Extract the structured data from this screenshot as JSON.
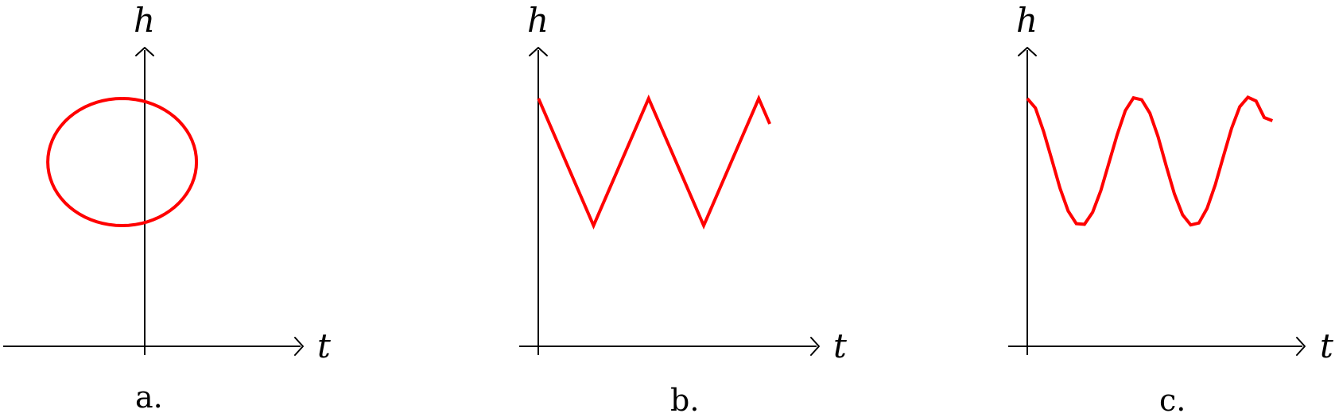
{
  "colors": {
    "curve": "#ff0000",
    "axis": "#000000"
  },
  "chart_data": [
    {
      "type": "line",
      "panel_label": "a.",
      "xlabel": "t",
      "ylabel": "h",
      "shape": "circle",
      "xlim": [
        -1.6,
        2.4
      ],
      "ylim": [
        0,
        4.7
      ],
      "points": {
        "x": [
          0,
          0.707,
          1,
          0.707,
          0,
          -0.707,
          -1,
          -0.707,
          0
        ],
        "y": [
          3.9,
          3.607,
          2.9,
          2.193,
          1.9,
          2.193,
          2.9,
          3.607,
          3.9
        ]
      }
    },
    {
      "type": "line",
      "panel_label": "b.",
      "xlabel": "t",
      "ylabel": "h",
      "shape": "triangle-wave",
      "xlim": [
        -0.35,
        5.05
      ],
      "ylim": [
        0,
        4.7
      ],
      "points": {
        "x": [
          0,
          1,
          2,
          3,
          4,
          4.2
        ],
        "y": [
          3.9,
          1.9,
          3.9,
          1.9,
          3.9,
          3.5
        ]
      }
    },
    {
      "type": "line",
      "panel_label": "c.",
      "xlabel": "t",
      "ylabel": "h",
      "shape": "sine-wave",
      "xlim": [
        -0.35,
        5.05
      ],
      "ylim": [
        0,
        4.7
      ],
      "points": {
        "x": [
          0,
          0.15,
          0.3,
          0.45,
          0.6,
          0.75,
          0.9,
          1.05,
          1.2,
          1.35,
          1.5,
          1.65,
          1.8,
          1.95,
          2.1,
          2.25,
          2.4,
          2.55,
          2.7,
          2.85,
          3.0,
          3.15,
          3.3,
          3.45,
          3.6,
          3.75,
          3.9,
          4.05,
          4.2,
          4.35,
          4.5
        ],
        "y": [
          3.9,
          3.75,
          3.38,
          2.94,
          2.49,
          2.13,
          1.93,
          1.92,
          2.11,
          2.45,
          2.89,
          3.33,
          3.71,
          3.91,
          3.88,
          3.67,
          3.3,
          2.84,
          2.4,
          2.07,
          1.91,
          1.94,
          2.17,
          2.54,
          2.99,
          3.43,
          3.77,
          3.92,
          3.86,
          3.6,
          3.55
        ]
      }
    }
  ]
}
